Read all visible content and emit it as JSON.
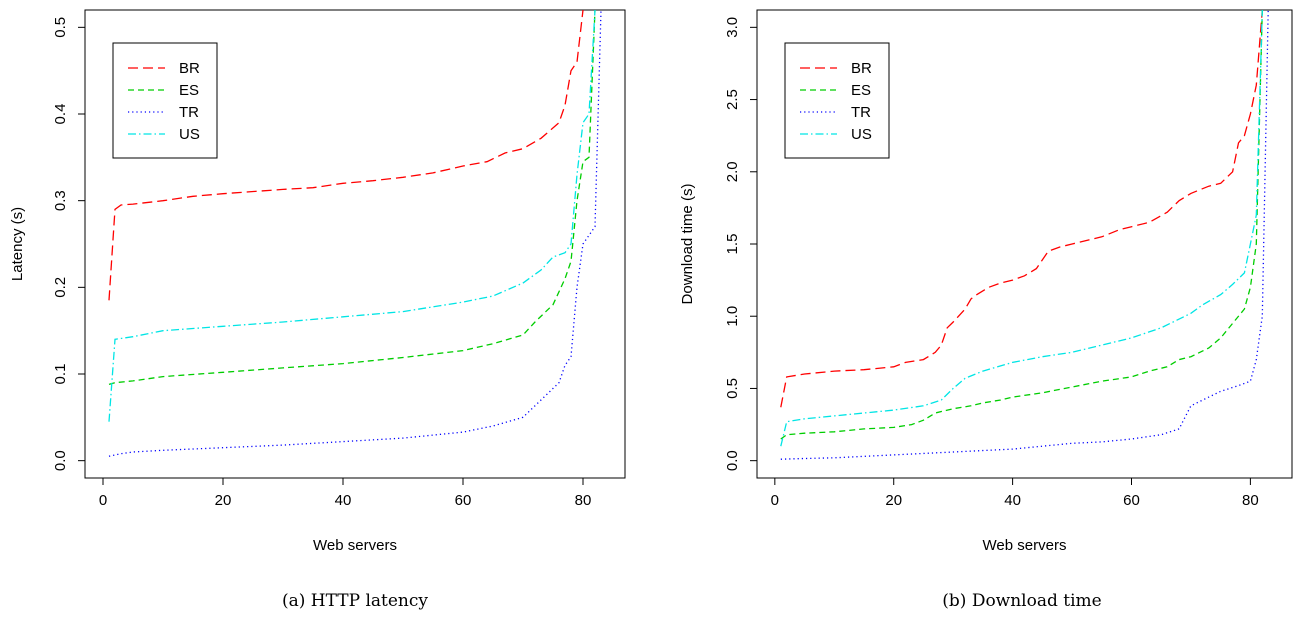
{
  "chart_data": [
    {
      "type": "line",
      "xlabel": "Web servers",
      "ylabel": "Latency (s)",
      "caption": "(a) HTTP latency",
      "xlim": [
        -3,
        87
      ],
      "ylim": [
        -0.02,
        0.52
      ],
      "xticks": [
        0,
        20,
        40,
        60,
        80
      ],
      "xtick_labels": [
        "0",
        "20",
        "40",
        "60",
        "80"
      ],
      "yticks": [
        0.0,
        0.1,
        0.2,
        0.3,
        0.4,
        0.5
      ],
      "ytick_labels": [
        "0.0",
        "0.1",
        "0.2",
        "0.3",
        "0.4",
        "0.5"
      ],
      "legend_position": "top-left",
      "grid": false,
      "series": [
        {
          "name": "BR",
          "color": "#ff0000",
          "dash": "dashed",
          "x": [
            1,
            2,
            3,
            5,
            10,
            15,
            20,
            30,
            35,
            40,
            45,
            50,
            55,
            60,
            64,
            67,
            70,
            73,
            76,
            77,
            78,
            79,
            80
          ],
          "y": [
            0.185,
            0.29,
            0.295,
            0.296,
            0.3,
            0.305,
            0.308,
            0.313,
            0.315,
            0.32,
            0.323,
            0.327,
            0.332,
            0.34,
            0.345,
            0.355,
            0.36,
            0.372,
            0.39,
            0.41,
            0.45,
            0.46,
            0.52
          ]
        },
        {
          "name": "ES",
          "color": "#00cd00",
          "dash": "longdash",
          "x": [
            1,
            2,
            5,
            10,
            20,
            30,
            40,
            50,
            60,
            65,
            70,
            72,
            75,
            77,
            78,
            79,
            80,
            81,
            82
          ],
          "y": [
            0.088,
            0.09,
            0.092,
            0.097,
            0.102,
            0.107,
            0.112,
            0.119,
            0.127,
            0.135,
            0.145,
            0.16,
            0.18,
            0.21,
            0.23,
            0.3,
            0.345,
            0.35,
            0.52
          ]
        },
        {
          "name": "TR",
          "color": "#0000ff",
          "dash": "dotted",
          "x": [
            1,
            3,
            5,
            10,
            20,
            30,
            40,
            50,
            60,
            65,
            70,
            73,
            76,
            77,
            78,
            79,
            80,
            81,
            82,
            83
          ],
          "y": [
            0.005,
            0.008,
            0.01,
            0.012,
            0.015,
            0.018,
            0.022,
            0.026,
            0.033,
            0.04,
            0.05,
            0.07,
            0.09,
            0.11,
            0.12,
            0.2,
            0.25,
            0.26,
            0.27,
            0.52
          ]
        },
        {
          "name": "US",
          "color": "#00e5e5",
          "dash": "dotdash",
          "x": [
            1,
            2,
            5,
            10,
            20,
            30,
            40,
            50,
            60,
            65,
            70,
            73,
            75,
            77,
            78,
            79,
            80,
            81,
            82
          ],
          "y": [
            0.045,
            0.14,
            0.143,
            0.15,
            0.155,
            0.16,
            0.166,
            0.172,
            0.183,
            0.19,
            0.205,
            0.22,
            0.235,
            0.24,
            0.25,
            0.33,
            0.39,
            0.4,
            0.52
          ]
        }
      ]
    },
    {
      "type": "line",
      "xlabel": "Web servers",
      "ylabel": "Download time (s)",
      "caption": "(b) Download time",
      "xlim": [
        -3,
        87
      ],
      "ylim": [
        -0.12,
        3.12
      ],
      "xticks": [
        0,
        20,
        40,
        60,
        80
      ],
      "xtick_labels": [
        "0",
        "20",
        "40",
        "60",
        "80"
      ],
      "yticks": [
        0.0,
        0.5,
        1.0,
        1.5,
        2.0,
        2.5,
        3.0
      ],
      "ytick_labels": [
        "0.0",
        "0.5",
        "1.0",
        "1.5",
        "2.0",
        "2.5",
        "3.0"
      ],
      "legend_position": "top-left",
      "grid": false,
      "series": [
        {
          "name": "BR",
          "color": "#ff0000",
          "dash": "dashed",
          "x": [
            1,
            2,
            5,
            10,
            15,
            20,
            22,
            25,
            27,
            28,
            29,
            30,
            32,
            33,
            34,
            36,
            38,
            40,
            42,
            44,
            46,
            48,
            50,
            55,
            58,
            60,
            63,
            66,
            68,
            70,
            73,
            75,
            77,
            78,
            79,
            80,
            81,
            82
          ],
          "y": [
            0.37,
            0.58,
            0.6,
            0.62,
            0.63,
            0.65,
            0.68,
            0.7,
            0.75,
            0.8,
            0.92,
            0.96,
            1.05,
            1.12,
            1.15,
            1.2,
            1.23,
            1.25,
            1.28,
            1.33,
            1.45,
            1.48,
            1.5,
            1.55,
            1.6,
            1.62,
            1.65,
            1.72,
            1.8,
            1.85,
            1.9,
            1.92,
            2.0,
            2.2,
            2.25,
            2.4,
            2.6,
            3.12
          ]
        },
        {
          "name": "ES",
          "color": "#00cd00",
          "dash": "longdash",
          "x": [
            1,
            2,
            5,
            10,
            15,
            20,
            23,
            25,
            27,
            30,
            33,
            35,
            38,
            40,
            45,
            50,
            55,
            60,
            63,
            66,
            68,
            70,
            73,
            75,
            77,
            79,
            80,
            81,
            82
          ],
          "y": [
            0.15,
            0.18,
            0.19,
            0.2,
            0.22,
            0.23,
            0.25,
            0.28,
            0.33,
            0.36,
            0.38,
            0.4,
            0.42,
            0.44,
            0.47,
            0.51,
            0.55,
            0.58,
            0.62,
            0.65,
            0.7,
            0.72,
            0.78,
            0.85,
            0.95,
            1.05,
            1.2,
            1.5,
            3.12
          ]
        },
        {
          "name": "TR",
          "color": "#0000ff",
          "dash": "dotted",
          "x": [
            1,
            5,
            10,
            20,
            30,
            40,
            45,
            50,
            55,
            60,
            65,
            68,
            69,
            70,
            72,
            75,
            78,
            80,
            81,
            82,
            83
          ],
          "y": [
            0.01,
            0.015,
            0.02,
            0.04,
            0.06,
            0.08,
            0.1,
            0.12,
            0.13,
            0.15,
            0.18,
            0.22,
            0.3,
            0.38,
            0.42,
            0.48,
            0.52,
            0.55,
            0.7,
            1.0,
            3.12
          ]
        },
        {
          "name": "US",
          "color": "#00e5e5",
          "dash": "dotdash",
          "x": [
            1,
            2,
            5,
            10,
            15,
            20,
            25,
            28,
            30,
            32,
            35,
            40,
            45,
            50,
            55,
            60,
            65,
            70,
            72,
            75,
            77,
            79,
            80,
            81,
            82
          ],
          "y": [
            0.1,
            0.27,
            0.29,
            0.31,
            0.33,
            0.35,
            0.38,
            0.42,
            0.5,
            0.57,
            0.62,
            0.68,
            0.72,
            0.75,
            0.8,
            0.85,
            0.92,
            1.02,
            1.08,
            1.15,
            1.22,
            1.3,
            1.5,
            1.7,
            3.12
          ]
        }
      ]
    }
  ]
}
